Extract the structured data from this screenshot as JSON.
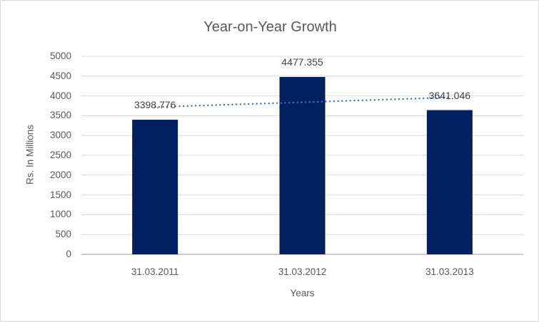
{
  "chart_data": {
    "type": "bar",
    "title": "Year-on-Year Growth",
    "categories": [
      "31.03.2011",
      "31.03.2012",
      "31.03.2013"
    ],
    "values": [
      3398.776,
      4477.355,
      3641.046
    ],
    "data_labels": [
      "3398.776",
      "4477.355",
      "3641.046"
    ],
    "xlabel": "Years",
    "ylabel": "Rs. In Millions",
    "ylim": [
      0,
      5000
    ],
    "ytick_step": 500,
    "ytick_labels": [
      "0",
      "500",
      "1000",
      "1500",
      "2000",
      "2500",
      "3000",
      "3500",
      "4000",
      "4500",
      "5000"
    ],
    "grid": "horizontal gridlines on",
    "legend": "none",
    "trendline": {
      "type": "linear",
      "style": "dotted",
      "endpoint_values": [
        3717.924,
        3960.194
      ]
    },
    "colors": {
      "bar": "#02205F",
      "trendline": "#4472C4",
      "gridline": "#D9D9D9",
      "axis_line": "#C6C6C6",
      "text": "#595959",
      "data_label_text": "#404040",
      "chart_border": "#D9D9D9",
      "background": "#FFFFFF"
    }
  }
}
